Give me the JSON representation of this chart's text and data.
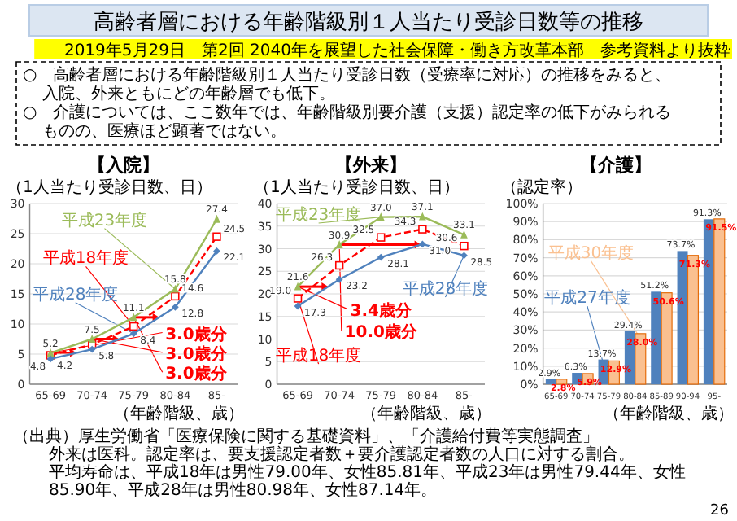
{
  "chart_data": [
    {
      "type": "other",
      "title": "高齢者層における年齢階級別１人当たり受診日数等の推移",
      "subtitle": "2019年5月29日　第2回 2040年を展望した社会保障・働き方改革本部　参考資料より抜粋",
      "annotations": [
        "○　高齢者層における年齢階級別１人当たり受診日数（受療率に対応）の推移をみると、入院、外来ともにどの年齢層でも低下。",
        "○　介護については、ここ数年では、年齢階級別要介護（支援）認定率の低下がみられるものの、医療ほど顕著ではない。"
      ]
    },
    {
      "type": "line",
      "title": "【入院】",
      "ylabel": "（1人当たり受診日数、日）",
      "xlabel": "（年齢階級、歳）",
      "categories": [
        "65-69",
        "70-74",
        "75-79",
        "80-84",
        "85-"
      ],
      "ylim": [
        0,
        30
      ],
      "yticks": [
        0,
        5,
        10,
        15,
        20,
        25,
        30
      ],
      "grid": "y",
      "series": [
        {
          "name": "平成18年度",
          "color": "#ff0000",
          "line_style": "dashed",
          "marker": "square",
          "values": [
            4.8,
            6.6,
            9.6,
            14.6,
            24.5
          ],
          "value_labels": [
            "4.8",
            null,
            null,
            "14.6",
            "24.5"
          ]
        },
        {
          "name": "平成23年度",
          "color": "#9bbb59",
          "marker": "triangle",
          "values": [
            5.2,
            7.5,
            11.1,
            15.8,
            27.4
          ],
          "value_labels": [
            "5.2",
            "7.5",
            "11.1",
            "15.8",
            "27.4"
          ]
        },
        {
          "name": "平成28年度",
          "color": "#4f81bd",
          "marker": "diamond",
          "values": [
            4.2,
            5.8,
            8.4,
            12.8,
            22.1
          ],
          "value_labels": [
            "4.2",
            "5.8",
            "8.4",
            "12.8",
            "22.1"
          ]
        }
      ],
      "annotations": [
        {
          "text": "3.0歳分",
          "x": "65-69",
          "y": 5.2
        },
        {
          "text": "3.0歳分",
          "x": "70-74",
          "y": 7.5
        },
        {
          "text": "3.0歳分",
          "x": "75-79",
          "y": 11.1
        }
      ]
    },
    {
      "type": "line",
      "title": "【外来】",
      "ylabel": "（1人当たり受診日数、日）",
      "xlabel": "（年齢階級、歳）",
      "categories": [
        "65-69",
        "70-74",
        "75-79",
        "80-84",
        "85-"
      ],
      "ylim": [
        0,
        40
      ],
      "yticks": [
        0,
        5,
        10,
        15,
        20,
        25,
        30,
        35,
        40
      ],
      "grid": "y",
      "series": [
        {
          "name": "平成18年度",
          "color": "#ff0000",
          "line_style": "dashed",
          "marker": "square",
          "values": [
            19.0,
            26.3,
            32.5,
            34.3,
            30.6
          ],
          "value_labels": [
            "19.0",
            "26.3",
            "32.5",
            "34.3",
            "30.6"
          ]
        },
        {
          "name": "平成23年度",
          "color": "#9bbb59",
          "marker": "triangle",
          "values": [
            21.6,
            30.9,
            37.0,
            37.1,
            33.1
          ],
          "value_labels": [
            "21.6",
            "30.9",
            "37.0",
            "37.1",
            "33.1"
          ]
        },
        {
          "name": "平成28年度",
          "color": "#4f81bd",
          "marker": "diamond",
          "values": [
            17.3,
            23.2,
            28.1,
            31.0,
            28.5
          ],
          "value_labels": [
            "17.3",
            "23.2",
            "28.1",
            "31.0",
            "28.5"
          ]
        }
      ],
      "annotations": [
        {
          "text": "3.4歳分",
          "x": "65-69",
          "y": 21.6
        },
        {
          "text": "10.0歳分",
          "x": "70-74",
          "y": 30.9
        }
      ]
    },
    {
      "type": "bar",
      "title": "【介護】",
      "ylabel": "（認定率）",
      "xlabel": "（年齢階級、歳）",
      "categories": [
        "65-69",
        "70-74",
        "75-79",
        "80-84",
        "85-89",
        "90-94",
        "95-"
      ],
      "ylim": [
        0,
        100
      ],
      "yticks": [
        {
          "value": 0,
          "label": "0%"
        },
        {
          "value": 10,
          "label": "10%"
        },
        {
          "value": 20,
          "label": "20%"
        },
        {
          "value": 30,
          "label": "30%"
        },
        {
          "value": 40,
          "label": "40%"
        },
        {
          "value": 50,
          "label": "50%"
        },
        {
          "value": 60,
          "label": "60%"
        },
        {
          "value": 70,
          "label": "70%"
        },
        {
          "value": 80,
          "label": "80%"
        },
        {
          "value": 90,
          "label": "90%"
        },
        {
          "value": 100,
          "label": "100%"
        }
      ],
      "grid": "y",
      "series": [
        {
          "name": "平成27年度",
          "color": "#4f81bd",
          "values": [
            2.9,
            6.3,
            13.7,
            29.4,
            51.2,
            73.7,
            91.3
          ],
          "value_labels": [
            "2.9%",
            "6.3%",
            "13.7%",
            "29.4%",
            "51.2%",
            "73.7%",
            "91.3%"
          ]
        },
        {
          "name": "平成30年度",
          "color": "#fac090",
          "values": [
            2.8,
            5.9,
            12.9,
            28.0,
            50.6,
            71.3,
            91.5
          ],
          "value_labels": [
            "2.8%",
            "5.9%",
            "12.9%",
            "28.0%",
            "50.6%",
            "71.3%",
            "91.5%"
          ]
        }
      ]
    },
    {
      "type": "other",
      "annotations": [
        "（出典）厚生労働省「医療保険に関する基礎資料」、「介護給付費等実態調査」",
        "外来は医科。認定率は、要支援認定者数＋要介護認定者数の人口に対する割合。",
        "平均寿命は、平成18年は男性79.00年、女性85.81年、平成23年は男性79.44年、女性85.90年、平成28年は男性80.98年、女性87.14年。",
        "26"
      ]
    }
  ]
}
